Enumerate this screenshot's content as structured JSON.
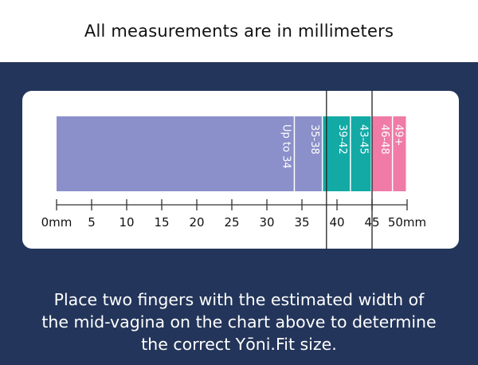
{
  "header": {
    "title": "All measurements are in millimeters"
  },
  "chart_data": {
    "type": "bar",
    "orientation": "horizontal-stacked",
    "xlim": [
      0,
      50
    ],
    "x_unit": "mm",
    "ticks": [
      {
        "value": 0,
        "label": "0mm"
      },
      {
        "value": 5,
        "label": "5"
      },
      {
        "value": 10,
        "label": "10"
      },
      {
        "value": 15,
        "label": "15"
      },
      {
        "value": 20,
        "label": "20"
      },
      {
        "value": 25,
        "label": "25"
      },
      {
        "value": 30,
        "label": "30"
      },
      {
        "value": 35,
        "label": "35"
      },
      {
        "value": 40,
        "label": "40"
      },
      {
        "value": 45,
        "label": "45"
      },
      {
        "value": 50,
        "label": "50mm"
      }
    ],
    "segments": [
      {
        "label": "Up to 34",
        "start": 0,
        "end": 34,
        "color": "#8b8fca"
      },
      {
        "label": "35-38",
        "start": 34,
        "end": 38,
        "color": "#8b8fca"
      },
      {
        "label": "39-42",
        "start": 38,
        "end": 42,
        "color": "#13aaa6"
      },
      {
        "label": "43-45",
        "start": 42,
        "end": 45,
        "color": "#13aaa6"
      },
      {
        "label": "46-48",
        "start": 45,
        "end": 48,
        "color": "#ef7ba6"
      },
      {
        "label": "49+",
        "start": 48,
        "end": 50,
        "color": "#ef7ba6"
      }
    ],
    "markers": [
      38.5,
      45
    ]
  },
  "footer": {
    "lines": [
      "Place two fingers with the estimated width of",
      "the mid-vagina on the chart above to determine",
      "the correct Yōni.Fit size."
    ]
  }
}
